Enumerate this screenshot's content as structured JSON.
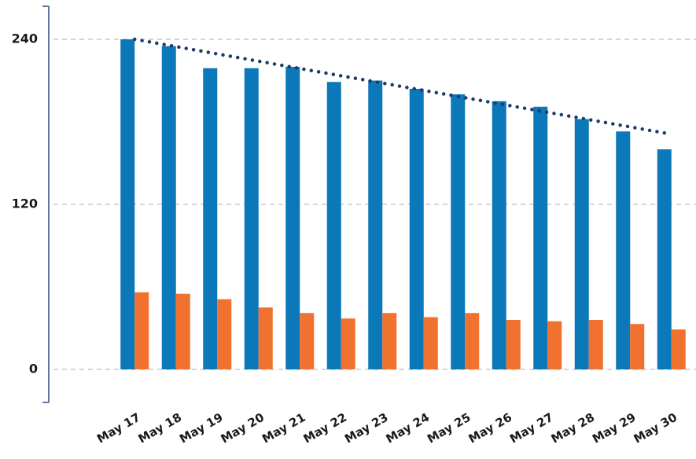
{
  "chart_data": {
    "type": "bar",
    "categories": [
      "May 17",
      "May 18",
      "May 19",
      "May 20",
      "May 21",
      "May 22",
      "May 23",
      "May 24",
      "May 25",
      "May 26",
      "May 27",
      "May 28",
      "May 29",
      "May 30"
    ],
    "series": [
      {
        "color": "#0b78b9",
        "values": [
          240,
          235,
          219,
          219,
          220,
          209,
          210,
          204,
          200,
          195,
          191,
          182,
          173,
          160
        ]
      },
      {
        "color": "#f1712e",
        "values": [
          56,
          55,
          51,
          45,
          41,
          37,
          41,
          38,
          41,
          36,
          35,
          36,
          33,
          29
        ]
      }
    ],
    "trend": {
      "color": "#1f3a6b",
      "start": 240,
      "end": 171
    },
    "ylim": [
      -24,
      264
    ],
    "yticks": [
      0,
      120,
      240
    ],
    "grid": true
  }
}
